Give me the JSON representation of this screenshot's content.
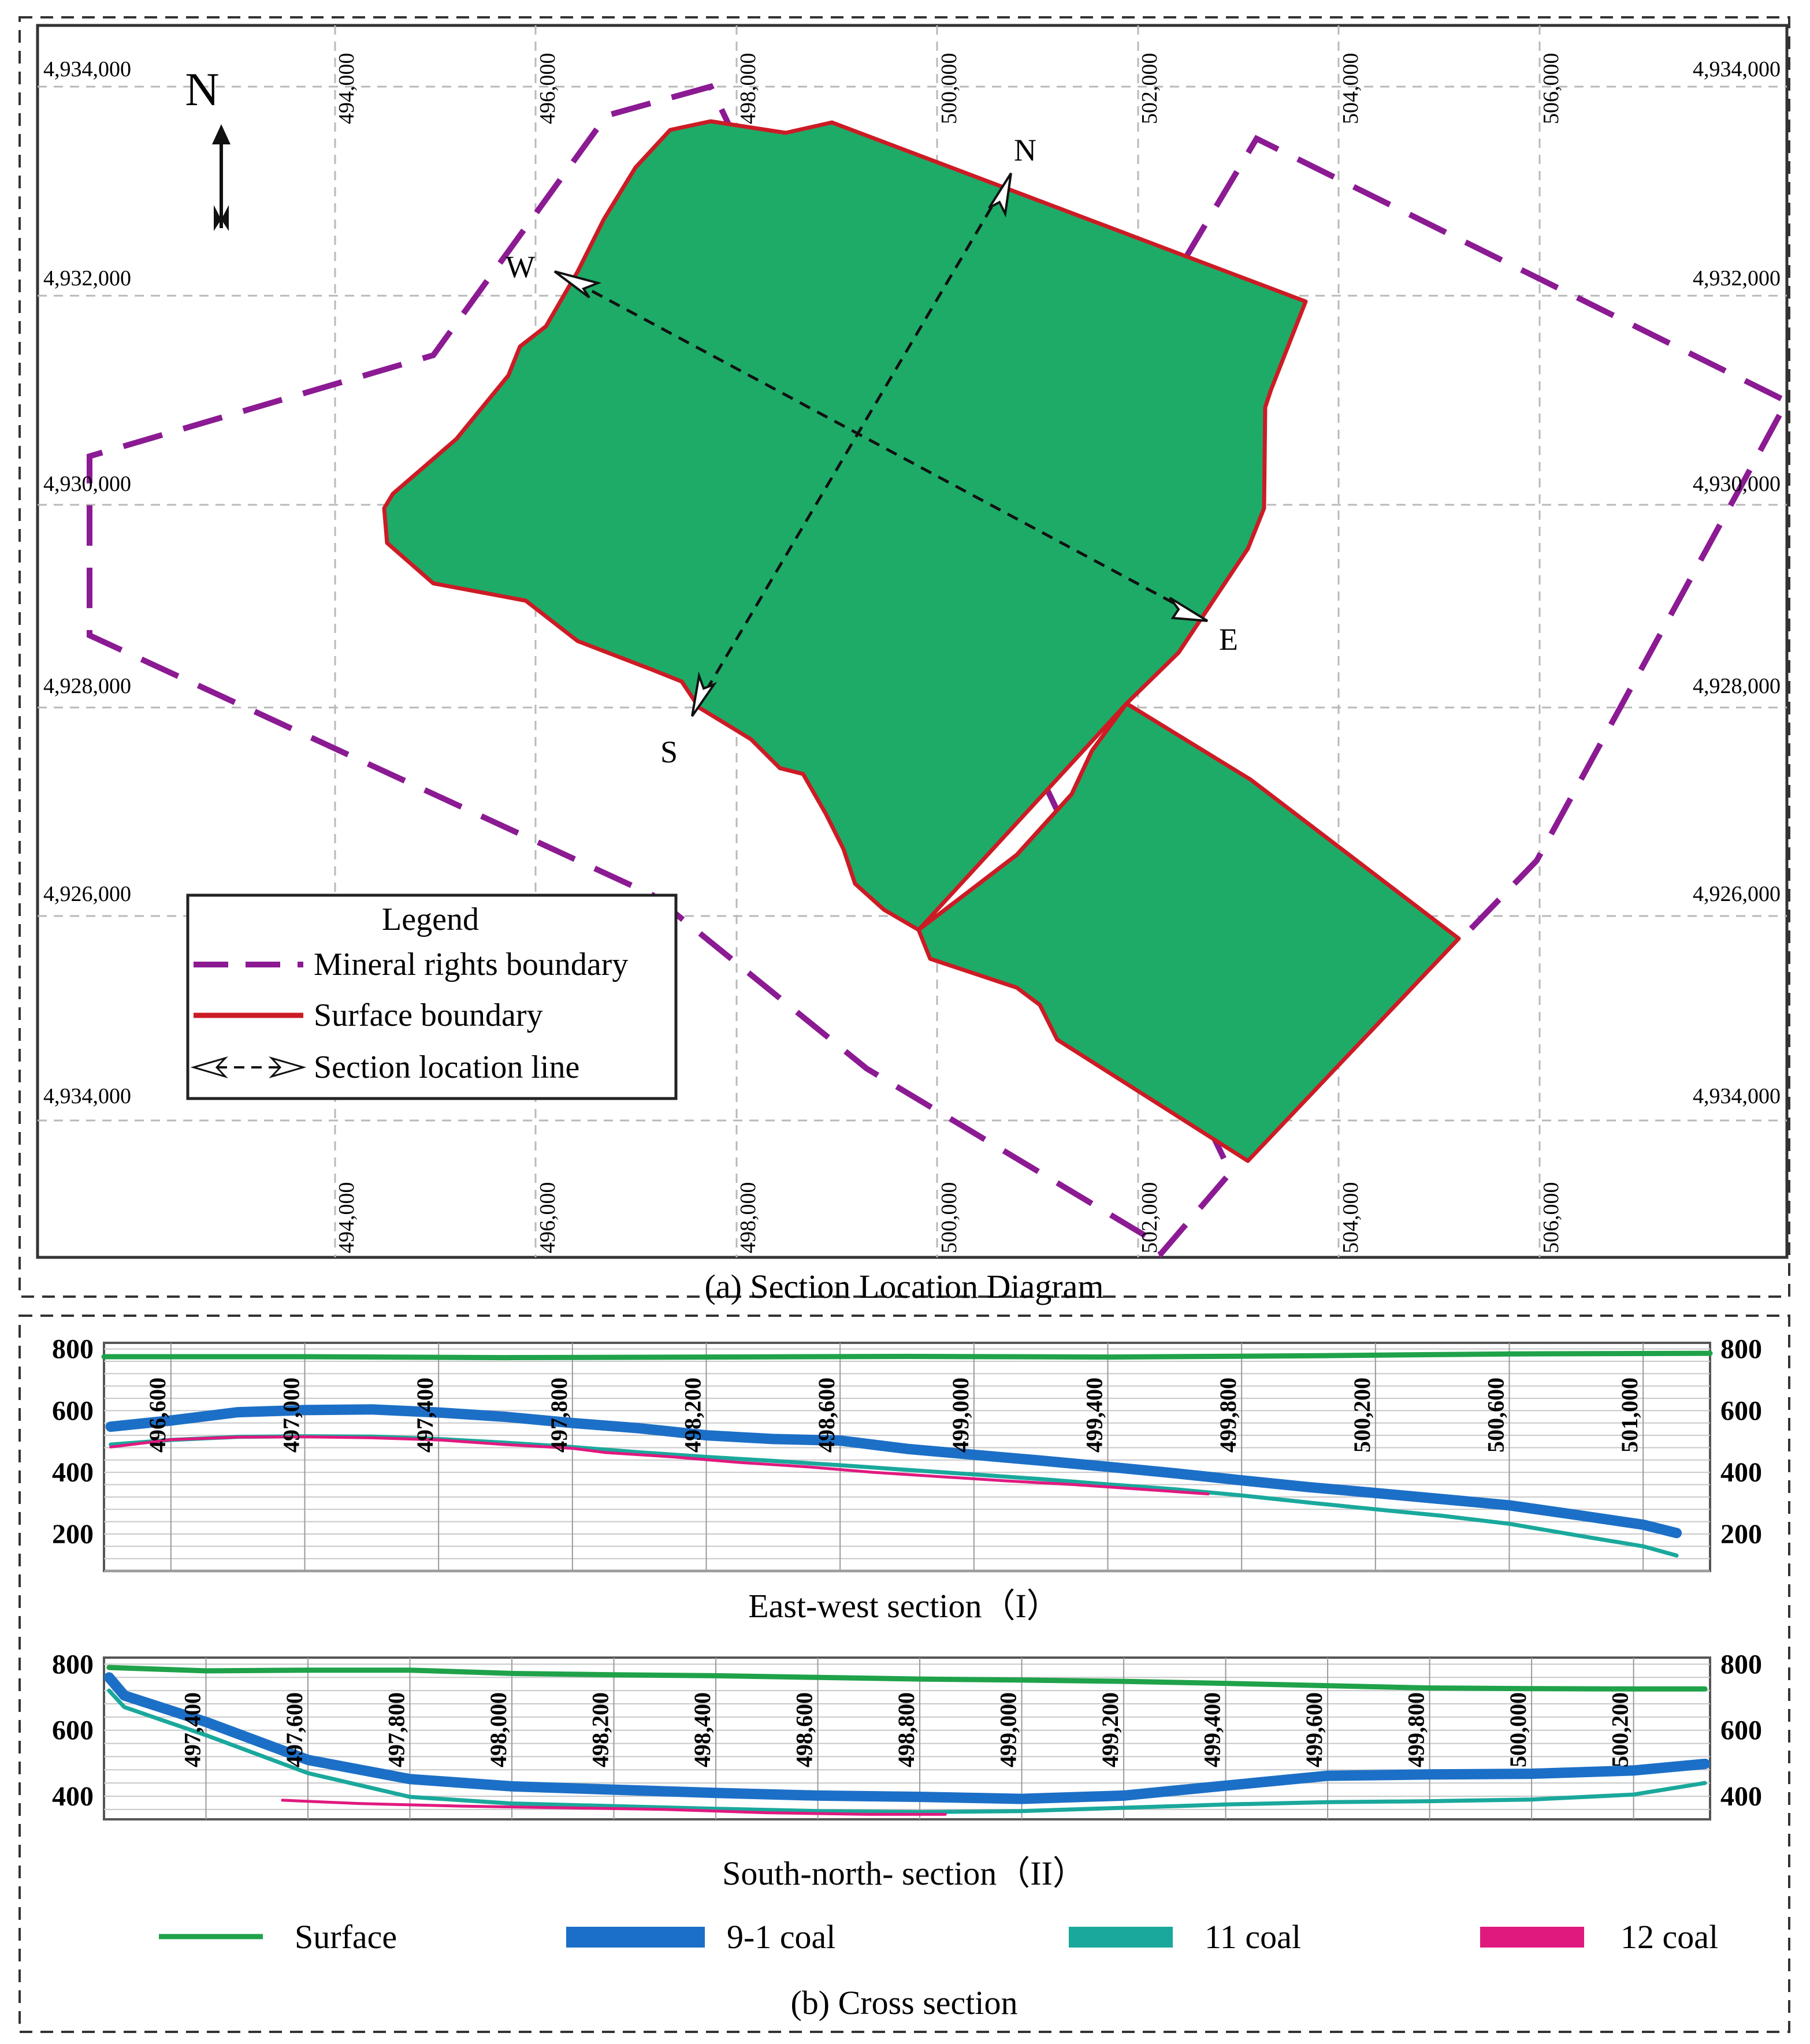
{
  "map": {
    "grid_x_labels": [
      "494,000",
      "496,000",
      "498,000",
      "500,000",
      "502,000",
      "504,000",
      "506,000"
    ],
    "grid_y_labels_left": [
      "4,934,000",
      "4,932,000",
      "4,930,000",
      "4,928,000",
      "4,926,000",
      "4,934,000"
    ],
    "grid_y_labels_right": [
      "4,934,000",
      "4,932,000",
      "4,930,000",
      "4,928,000",
      "4,926,000",
      "4,934,000"
    ],
    "north_arrow_label": "N",
    "section_endpoints": {
      "north": "N",
      "south": "S",
      "west": "W",
      "east": "E"
    },
    "legend": {
      "title": "Legend",
      "items": [
        "Mineral rights boundary",
        "Surface boundary",
        "Section location line"
      ]
    },
    "caption": "(a) Section Location Diagram",
    "colors": {
      "surface_fill": "#1eab68",
      "surface_boundary": "#cc1b25",
      "mineral_boundary": "#8b1a93",
      "section_line": "#111111"
    }
  },
  "cross_section": {
    "caption": "(b) Cross section",
    "legend": [
      {
        "label": "Surface",
        "color": "#1fa24a"
      },
      {
        "label": "9-1 coal",
        "color": "#1c6fc6"
      },
      {
        "label": "11 coal",
        "color": "#1aa89c"
      },
      {
        "label": "12 coal",
        "color": "#e0197f"
      }
    ]
  },
  "chart_data": [
    {
      "type": "line",
      "title": "East-west section（I）",
      "x_tick_labels": [
        "496,600",
        "497,000",
        "497,400",
        "497,800",
        "498,200",
        "498,600",
        "499,000",
        "499,400",
        "499,800",
        "500,200",
        "500,600",
        "501,000"
      ],
      "y_tick_labels": [
        "800",
        "600",
        "400",
        "200"
      ],
      "xlim": [
        496400,
        501200
      ],
      "ylim": [
        80,
        820
      ],
      "grid": true,
      "series": [
        {
          "name": "Surface",
          "x": [
            496400,
            497000,
            497600,
            498200,
            498800,
            499400,
            500000,
            500600,
            501200
          ],
          "y": [
            775,
            775,
            772,
            774,
            776,
            774,
            778,
            784,
            786
          ]
        },
        {
          "name": "9-1 coal",
          "x": [
            496420,
            496600,
            496800,
            497000,
            497200,
            497400,
            497600,
            497800,
            498000,
            498200,
            498400,
            498600,
            498800,
            499000,
            499200,
            499400,
            499600,
            499800,
            500000,
            500200,
            500400,
            500600,
            500800,
            501000,
            501100
          ],
          "y": [
            548,
            568,
            595,
            602,
            604,
            594,
            580,
            560,
            543,
            520,
            508,
            503,
            476,
            457,
            438,
            418,
            397,
            374,
            352,
            333,
            313,
            293,
            262,
            230,
            203
          ]
        },
        {
          "name": "11 coal",
          "x": [
            496420,
            496600,
            496800,
            497000,
            497200,
            497400,
            497600,
            497800,
            498000,
            498200,
            498400,
            498600,
            498800,
            499000,
            499200,
            499400,
            499600,
            499800,
            500000,
            500200,
            500400,
            500600,
            500800,
            501000,
            501100
          ],
          "y": [
            490,
            505,
            515,
            517,
            516,
            508,
            496,
            482,
            465,
            450,
            437,
            423,
            408,
            393,
            378,
            361,
            345,
            325,
            302,
            280,
            259,
            233,
            196,
            160,
            130
          ]
        },
        {
          "name": "12 coal",
          "x": [
            496420,
            496600,
            496800,
            497000,
            497200,
            497400,
            497600,
            497800,
            497900,
            498100,
            498300,
            498500,
            498700,
            498900,
            499100,
            499300,
            499500,
            499700
          ],
          "y": [
            482,
            506,
            514,
            515,
            512,
            505,
            490,
            478,
            464,
            450,
            432,
            418,
            400,
            386,
            372,
            360,
            345,
            330
          ]
        }
      ]
    },
    {
      "type": "line",
      "title": "South-north- section（II）",
      "x_tick_labels": [
        "497,400",
        "497,600",
        "497,800",
        "498,000",
        "498,200",
        "498,400",
        "498,600",
        "498,800",
        "499,000",
        "499,200",
        "499,400",
        "499,600",
        "499,800",
        "500,000",
        "500,200"
      ],
      "y_tick_labels": [
        "800",
        "600",
        "400"
      ],
      "xlim": [
        497200,
        500350
      ],
      "ylim": [
        330,
        820
      ],
      "grid": true,
      "series": [
        {
          "name": "Surface",
          "x": [
            497210,
            497400,
            497600,
            497800,
            498000,
            498200,
            498400,
            498600,
            498800,
            499000,
            499200,
            499400,
            499600,
            499800,
            500000,
            500200,
            500340
          ],
          "y": [
            790,
            780,
            782,
            782,
            772,
            768,
            765,
            760,
            755,
            752,
            748,
            742,
            735,
            728,
            726,
            725,
            725
          ]
        },
        {
          "name": "9-1 coal",
          "x": [
            497210,
            497240,
            497400,
            497600,
            497800,
            498000,
            498200,
            498400,
            498600,
            498800,
            499000,
            499200,
            499400,
            499600,
            499800,
            500000,
            500200,
            500340
          ],
          "y": [
            760,
            705,
            625,
            510,
            452,
            430,
            420,
            410,
            402,
            398,
            392,
            402,
            432,
            462,
            466,
            468,
            478,
            498
          ]
        },
        {
          "name": "11 coal",
          "x": [
            497210,
            497240,
            497400,
            497600,
            497800,
            498000,
            498200,
            498400,
            498600,
            498800,
            499000,
            499200,
            499400,
            499600,
            499800,
            500000,
            500200,
            500340
          ],
          "y": [
            720,
            670,
            585,
            470,
            398,
            378,
            370,
            362,
            355,
            352,
            355,
            365,
            375,
            382,
            385,
            390,
            405,
            440
          ]
        },
        {
          "name": "12 coal",
          "x": [
            497550,
            497700,
            497900,
            498100,
            498300,
            498500,
            498700,
            498850
          ],
          "y": [
            388,
            378,
            370,
            365,
            360,
            350,
            345,
            345
          ]
        }
      ]
    }
  ]
}
